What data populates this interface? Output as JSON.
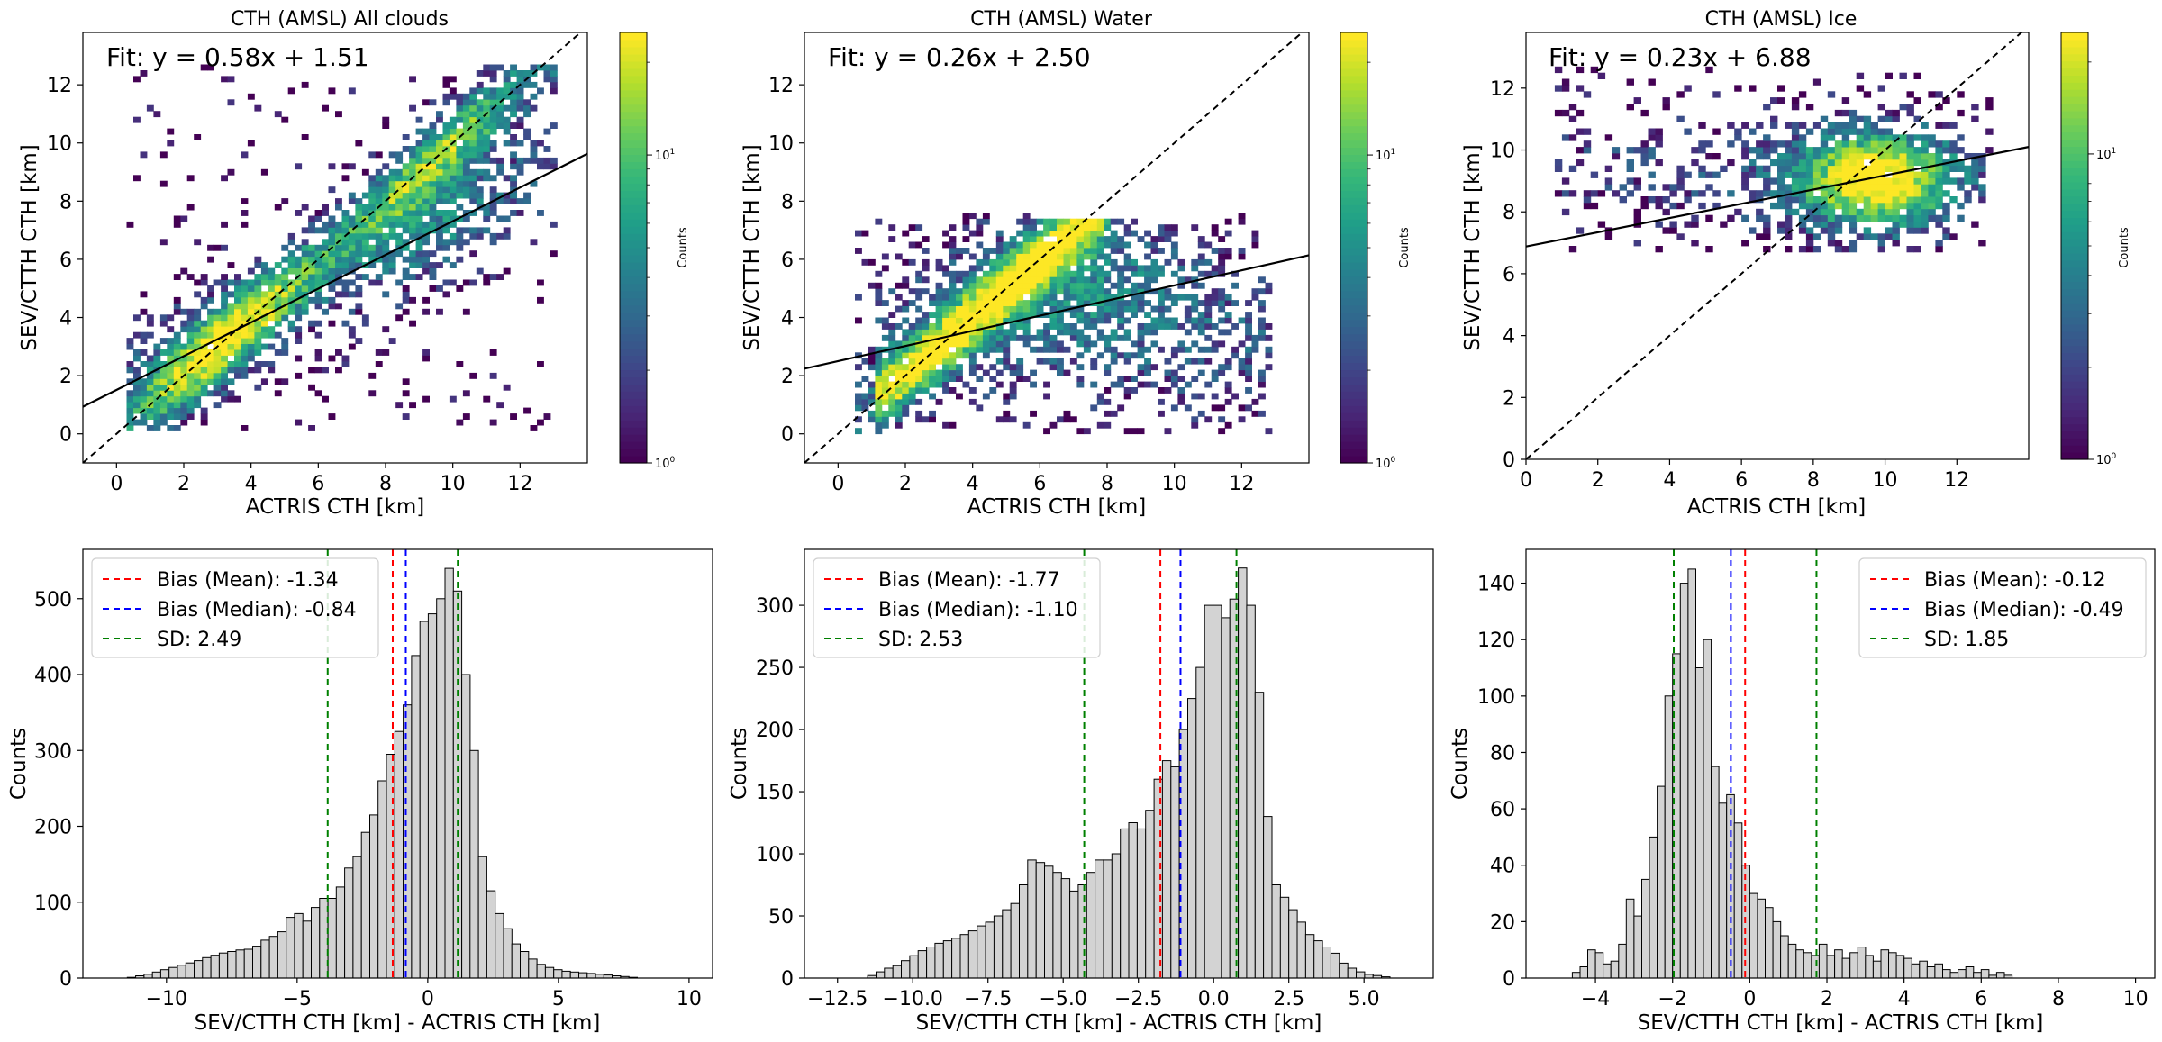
{
  "chart_data": [
    {
      "type": "heatmap",
      "panel": "scatter-all",
      "title": "CTH (AMSL) All clouds",
      "xlabel": "ACTRIS CTH [km]",
      "ylabel": "SEV/CTTH CTH [km]",
      "xlim": [
        -1,
        14
      ],
      "ylim": [
        -1,
        13.8
      ],
      "xticks": [
        0,
        2,
        4,
        6,
        8,
        10,
        12
      ],
      "yticks": [
        0,
        2,
        4,
        6,
        8,
        10,
        12
      ],
      "fit_text": "Fit: y = 0.58x + 1.51",
      "fit": {
        "slope": 0.58,
        "intercept": 1.51
      },
      "one_to_one": true,
      "points_extent": {
        "x": [
          0.3,
          13
        ],
        "y": [
          0.1,
          12.6
        ]
      },
      "colorbar": {
        "label": "Counts",
        "scale": "log",
        "min": 1,
        "max": 25,
        "ticks": [
          "10^0",
          "10^1"
        ]
      }
    },
    {
      "type": "heatmap",
      "panel": "scatter-water",
      "title": "CTH (AMSL) Water",
      "xlabel": "ACTRIS CTH [km]",
      "ylabel": "SEV/CTTH CTH [km]",
      "xlim": [
        -1,
        14
      ],
      "ylim": [
        -1,
        13.8
      ],
      "xticks": [
        0,
        2,
        4,
        6,
        8,
        10,
        12
      ],
      "yticks": [
        0,
        2,
        4,
        6,
        8,
        10,
        12
      ],
      "fit_text": "Fit: y = 0.26x + 2.50",
      "fit": {
        "slope": 0.26,
        "intercept": 2.5
      },
      "one_to_one": true,
      "points_extent": {
        "x": [
          0.5,
          12.8
        ],
        "y": [
          0.0,
          7.5
        ]
      },
      "colorbar": {
        "label": "Counts",
        "scale": "log",
        "min": 1,
        "max": 25,
        "ticks": [
          "10^0",
          "10^1"
        ]
      }
    },
    {
      "type": "heatmap",
      "panel": "scatter-ice",
      "title": "CTH (AMSL) Ice",
      "xlabel": "ACTRIS CTH [km]",
      "ylabel": "SEV/CTTH CTH [km]",
      "xlim": [
        0,
        14
      ],
      "ylim": [
        0,
        13.8
      ],
      "xticks": [
        0,
        2,
        4,
        6,
        8,
        10,
        12
      ],
      "yticks": [
        0,
        2,
        4,
        6,
        8,
        10,
        12
      ],
      "fit_text": "Fit: y = 0.23x + 6.88",
      "fit": {
        "slope": 0.23,
        "intercept": 6.88
      },
      "one_to_one": true,
      "points_extent": {
        "x": [
          0.8,
          12.8
        ],
        "y": [
          6.7,
          12.5
        ]
      },
      "colorbar": {
        "label": "Counts",
        "scale": "log",
        "min": 1,
        "max": 25,
        "ticks": [
          "10^0",
          "10^1"
        ]
      }
    },
    {
      "type": "bar",
      "panel": "hist-all",
      "xlabel": "SEV/CTTH CTH [km] - ACTRIS CTH [km]",
      "ylabel": "Counts",
      "xlim": [
        -13.2,
        10.9
      ],
      "ylim": [
        0,
        565
      ],
      "xticks": [
        -10,
        -5,
        0,
        5,
        10
      ],
      "xtick_labels": [
        "−10",
        "−5",
        "0",
        "5",
        "10"
      ],
      "yticks": [
        0,
        100,
        200,
        300,
        400,
        500
      ],
      "bin_start": -11.5,
      "bin_width": 0.32,
      "counts": [
        1,
        3,
        5,
        8,
        11,
        14,
        17,
        20,
        23,
        27,
        30,
        33,
        35,
        37,
        38,
        42,
        50,
        55,
        61,
        80,
        85,
        75,
        93,
        105,
        105,
        120,
        145,
        160,
        192,
        215,
        260,
        295,
        325,
        360,
        425,
        470,
        480,
        500,
        540,
        510,
        400,
        300,
        160,
        115,
        85,
        65,
        45,
        35,
        25,
        18,
        14,
        11,
        9,
        8,
        7,
        6,
        5,
        4,
        3,
        2,
        1
      ],
      "bias_mean": -1.34,
      "bias_median": -0.84,
      "sd": 2.49,
      "legend_position": "upper left",
      "legend": [
        "Bias (Mean): -1.34",
        "Bias (Median): -0.84",
        "SD: 2.49"
      ]
    },
    {
      "type": "bar",
      "panel": "hist-water",
      "xlabel": "SEV/CTTH CTH [km] - ACTRIS CTH [km]",
      "ylabel": "Counts",
      "xlim": [
        -13.6,
        7.3
      ],
      "ylim": [
        0,
        345
      ],
      "xticks": [
        -12.5,
        -10,
        -7.5,
        -5,
        -2.5,
        0,
        2.5,
        5
      ],
      "xtick_labels": [
        "−12.5",
        "−10.0",
        "−7.5",
        "−5.0",
        "−2.5",
        "0.0",
        "2.5",
        "5.0"
      ],
      "yticks": [
        0,
        50,
        100,
        150,
        200,
        250,
        300
      ],
      "bin_start": -11.5,
      "bin_width": 0.28,
      "counts": [
        2,
        5,
        8,
        10,
        14,
        18,
        22,
        25,
        28,
        30,
        32,
        35,
        38,
        42,
        45,
        50,
        55,
        60,
        75,
        95,
        93,
        90,
        85,
        80,
        70,
        75,
        85,
        95,
        95,
        100,
        120,
        125,
        120,
        135,
        160,
        175,
        170,
        200,
        225,
        250,
        300,
        300,
        290,
        305,
        330,
        300,
        230,
        130,
        75,
        65,
        55,
        45,
        35,
        30,
        25,
        20,
        12,
        8,
        5,
        3,
        2,
        1
      ],
      "bias_mean": -1.77,
      "bias_median": -1.1,
      "sd": 2.53,
      "legend_position": "upper left",
      "legend": [
        "Bias (Mean): -1.77",
        "Bias (Median): -1.10",
        "SD: 2.53"
      ]
    },
    {
      "type": "bar",
      "panel": "hist-ice",
      "xlabel": "SEV/CTTH CTH [km] - ACTRIS CTH [km]",
      "ylabel": "Counts",
      "xlim": [
        -5.8,
        10.5
      ],
      "ylim": [
        0,
        152
      ],
      "xticks": [
        -4,
        -2,
        0,
        2,
        4,
        6,
        8,
        10
      ],
      "xtick_labels": [
        "−4",
        "−2",
        "0",
        "2",
        "4",
        "6",
        "8",
        "10"
      ],
      "yticks": [
        0,
        20,
        40,
        60,
        80,
        100,
        120,
        140
      ],
      "bin_start": -4.6,
      "bin_width": 0.2,
      "counts": [
        2,
        4,
        10,
        9,
        5,
        6,
        12,
        28,
        22,
        35,
        50,
        68,
        100,
        115,
        140,
        145,
        110,
        120,
        75,
        62,
        65,
        55,
        40,
        30,
        28,
        25,
        20,
        15,
        12,
        10,
        9,
        8,
        12,
        8,
        10,
        7,
        9,
        11,
        8,
        6,
        10,
        9,
        8,
        7,
        5,
        6,
        4,
        5,
        3,
        2,
        3,
        4,
        2,
        3,
        1,
        2,
        1
      ],
      "bias_mean": -0.12,
      "bias_median": -0.49,
      "sd": 1.85,
      "legend_position": "upper right",
      "legend": [
        "Bias (Mean): -0.12",
        "Bias (Median): -0.49",
        "SD: 1.85"
      ]
    }
  ],
  "colors": {
    "mean_line": "#ff0000",
    "median_line": "#0000ff",
    "sd_line": "#008000",
    "bar_fill": "#d3d3d3",
    "bar_edge": "#000000",
    "fit_line": "#000000"
  }
}
